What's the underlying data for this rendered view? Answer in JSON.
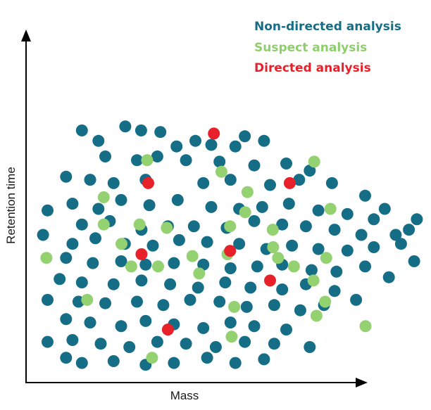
{
  "chart_data": {
    "type": "scatter",
    "xlabel": "Mass",
    "ylabel": "Retention time",
    "xlim": [
      0,
      10
    ],
    "ylim": [
      0,
      10
    ],
    "grid": false,
    "legend_placement": "top-right",
    "series": [
      {
        "name": "Non-directed analysis",
        "color": "#156d86",
        "points": [
          [
            1.92,
            7.89
          ],
          [
            1.48,
            8.23
          ],
          [
            2.63,
            8.36
          ],
          [
            3.05,
            8.23
          ],
          [
            3.56,
            8.18
          ],
          [
            4.49,
            7.89
          ],
          [
            5.8,
            8.04
          ],
          [
            6.31,
            7.89
          ],
          [
            3.99,
            7.71
          ],
          [
            4.91,
            7.76
          ],
          [
            5.55,
            7.71
          ],
          [
            2.1,
            7.38
          ],
          [
            2.94,
            7.26
          ],
          [
            3.48,
            7.38
          ],
          [
            4.24,
            7.26
          ],
          [
            5.13,
            7.21
          ],
          [
            6.05,
            7.09
          ],
          [
            6.9,
            7.15
          ],
          [
            7.52,
            6.92
          ],
          [
            1.06,
            6.72
          ],
          [
            1.7,
            6.62
          ],
          [
            2.32,
            6.51
          ],
          [
            3.17,
            6.62
          ],
          [
            4.7,
            6.51
          ],
          [
            5.42,
            6.62
          ],
          [
            6.47,
            6.45
          ],
          [
            7.24,
            6.62
          ],
          [
            8.11,
            6.51
          ],
          [
            8.99,
            6.1
          ],
          [
            9.51,
            5.67
          ],
          [
            0.57,
            5.62
          ],
          [
            1.23,
            5.84
          ],
          [
            1.92,
            5.67
          ],
          [
            2.52,
            5.96
          ],
          [
            3.27,
            5.79
          ],
          [
            4.02,
            5.96
          ],
          [
            4.91,
            5.73
          ],
          [
            5.65,
            5.67
          ],
          [
            6.26,
            5.73
          ],
          [
            6.97,
            5.84
          ],
          [
            7.75,
            5.62
          ],
          [
            8.52,
            5.5
          ],
          [
            9.22,
            5.33
          ],
          [
            10.36,
            5.33
          ],
          [
            1.48,
            5.16
          ],
          [
            2.22,
            5.27
          ],
          [
            3.06,
            4.99
          ],
          [
            3.76,
            5.1
          ],
          [
            4.45,
            5.1
          ],
          [
            5.32,
            5.05
          ],
          [
            6.05,
            5.27
          ],
          [
            6.79,
            5.16
          ],
          [
            7.42,
            5.1
          ],
          [
            8.18,
            4.99
          ],
          [
            8.89,
            4.82
          ],
          [
            9.8,
            4.82
          ],
          [
            10.15,
            4.99
          ],
          [
            0.45,
            4.82
          ],
          [
            1.23,
            4.53
          ],
          [
            1.84,
            4.71
          ],
          [
            2.62,
            4.53
          ],
          [
            3.36,
            4.47
          ],
          [
            4.06,
            4.65
          ],
          [
            4.8,
            4.59
          ],
          [
            5.65,
            4.53
          ],
          [
            6.37,
            4.36
          ],
          [
            7.05,
            4.47
          ],
          [
            7.75,
            4.36
          ],
          [
            8.52,
            4.31
          ],
          [
            9.22,
            4.42
          ],
          [
            9.94,
            4.53
          ],
          [
            1.06,
            4.07
          ],
          [
            1.77,
            3.9
          ],
          [
            2.52,
            3.96
          ],
          [
            3.17,
            3.85
          ],
          [
            3.92,
            3.9
          ],
          [
            4.7,
            3.85
          ],
          [
            5.42,
            3.73
          ],
          [
            6.13,
            3.79
          ],
          [
            6.79,
            3.85
          ],
          [
            7.57,
            3.67
          ],
          [
            8.23,
            3.62
          ],
          [
            8.99,
            3.79
          ],
          [
            9.62,
            3.44
          ],
          [
            10.29,
            3.96
          ],
          [
            0.89,
            3.38
          ],
          [
            1.48,
            3.27
          ],
          [
            2.32,
            3.21
          ],
          [
            3.06,
            3.33
          ],
          [
            3.82,
            3.21
          ],
          [
            4.56,
            3.1
          ],
          [
            5.28,
            3.27
          ],
          [
            5.95,
            3.1
          ],
          [
            6.79,
            3.04
          ],
          [
            7.42,
            3.21
          ],
          [
            8.18,
            2.99
          ],
          [
            8.75,
            2.7
          ],
          [
            0.57,
            2.7
          ],
          [
            1.39,
            2.64
          ],
          [
            2.1,
            2.59
          ],
          [
            2.94,
            2.64
          ],
          [
            3.64,
            2.53
          ],
          [
            4.35,
            2.7
          ],
          [
            5.13,
            2.64
          ],
          [
            5.85,
            2.47
          ],
          [
            6.58,
            2.53
          ],
          [
            7.27,
            2.36
          ],
          [
            7.9,
            2.53
          ],
          [
            1.06,
            2.07
          ],
          [
            1.7,
            1.96
          ],
          [
            2.52,
            1.84
          ],
          [
            3.17,
            2.01
          ],
          [
            3.92,
            1.9
          ],
          [
            4.7,
            1.78
          ],
          [
            5.42,
            1.96
          ],
          [
            6.05,
            1.84
          ],
          [
            6.9,
            1.73
          ],
          [
            0.57,
            1.33
          ],
          [
            1.23,
            1.39
          ],
          [
            1.98,
            1.27
          ],
          [
            2.74,
            1.16
          ],
          [
            3.48,
            1.33
          ],
          [
            4.24,
            1.27
          ],
          [
            5.03,
            1.16
          ],
          [
            5.8,
            1.33
          ],
          [
            6.58,
            1.27
          ],
          [
            7.52,
            1.16
          ],
          [
            1.48,
            0.64
          ],
          [
            2.32,
            0.7
          ],
          [
            3.17,
            0.58
          ],
          [
            3.92,
            0.64
          ],
          [
            4.8,
            0.81
          ],
          [
            5.55,
            0.64
          ],
          [
            6.31,
            0.76
          ],
          [
            1.06,
            0.81
          ]
        ]
      },
      {
        "name": "Suspect analysis",
        "color": "#93d171",
        "points": [
          [
            3.21,
            7.26
          ],
          [
            7.64,
            7.21
          ],
          [
            5.18,
            6.88
          ],
          [
            2.06,
            6.05
          ],
          [
            5.87,
            6.22
          ],
          [
            8.07,
            5.67
          ],
          [
            5.81,
            5.56
          ],
          [
            2.06,
            5.16
          ],
          [
            3.01,
            5.16
          ],
          [
            3.73,
            5.05
          ],
          [
            5.41,
            5.1
          ],
          [
            6.54,
            4.99
          ],
          [
            2.53,
            4.53
          ],
          [
            6.55,
            4.42
          ],
          [
            0.54,
            4.07
          ],
          [
            4.41,
            4.13
          ],
          [
            5.34,
            4.19
          ],
          [
            6.68,
            4.07
          ],
          [
            7.96,
            4.07
          ],
          [
            2.79,
            3.79
          ],
          [
            3.5,
            3.79
          ],
          [
            7.1,
            3.79
          ],
          [
            4.59,
            3.56
          ],
          [
            7.62,
            3.33
          ],
          [
            1.62,
            2.7
          ],
          [
            7.93,
            2.64
          ],
          [
            5.52,
            2.47
          ],
          [
            7.7,
            2.18
          ],
          [
            9.0,
            1.84
          ],
          [
            5.45,
            1.5
          ],
          [
            3.34,
            0.81
          ]
        ]
      },
      {
        "name": "Directed analysis",
        "color": "#e8202a",
        "points": [
          [
            4.98,
            8.13
          ],
          [
            3.24,
            6.51
          ],
          [
            6.99,
            6.51
          ],
          [
            3.06,
            4.19
          ],
          [
            5.41,
            4.3
          ],
          [
            6.47,
            3.33
          ],
          [
            3.76,
            1.73
          ]
        ]
      }
    ]
  }
}
